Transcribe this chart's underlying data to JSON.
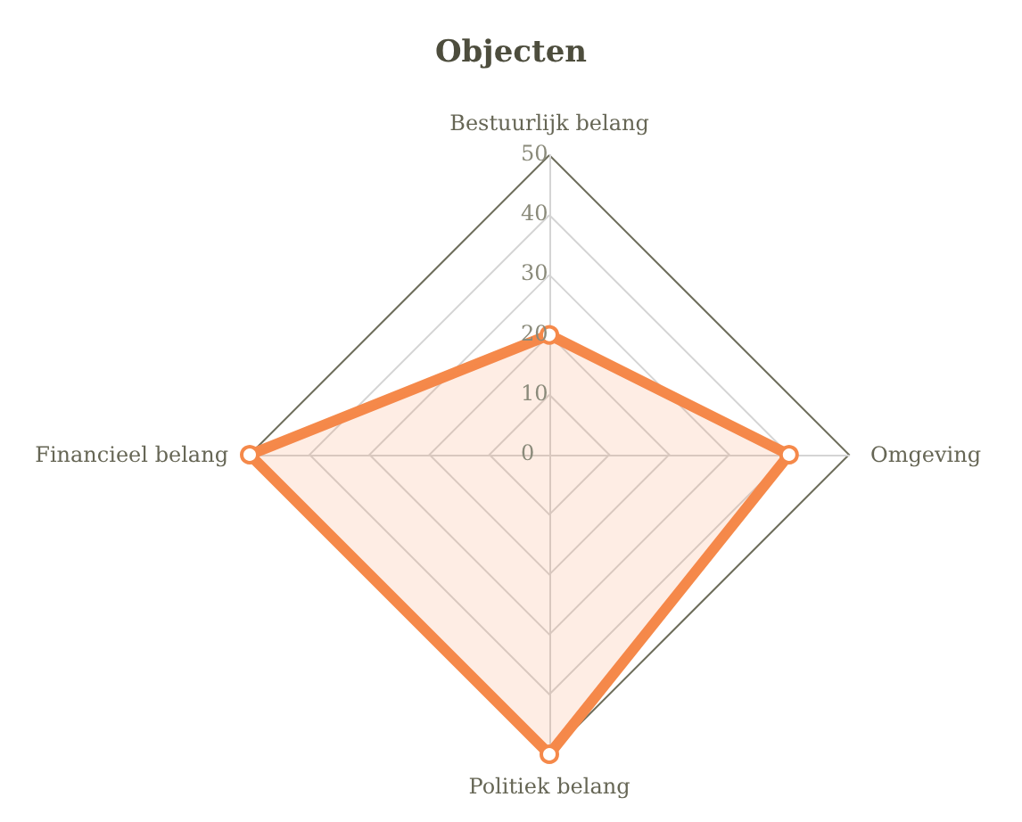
{
  "chart_data": {
    "type": "radar",
    "title": "Objecten",
    "categories": [
      "Bestuurlijk belang",
      "Omgeving",
      "Politiek belang",
      "Financieel belang"
    ],
    "series": [
      {
        "color": "#f5894a",
        "values": [
          20,
          40,
          50,
          50
        ]
      }
    ],
    "ylim": [
      0,
      50
    ],
    "yticks": [
      0,
      10,
      20,
      30,
      40,
      50
    ],
    "grid": true,
    "marker": "circle"
  }
}
